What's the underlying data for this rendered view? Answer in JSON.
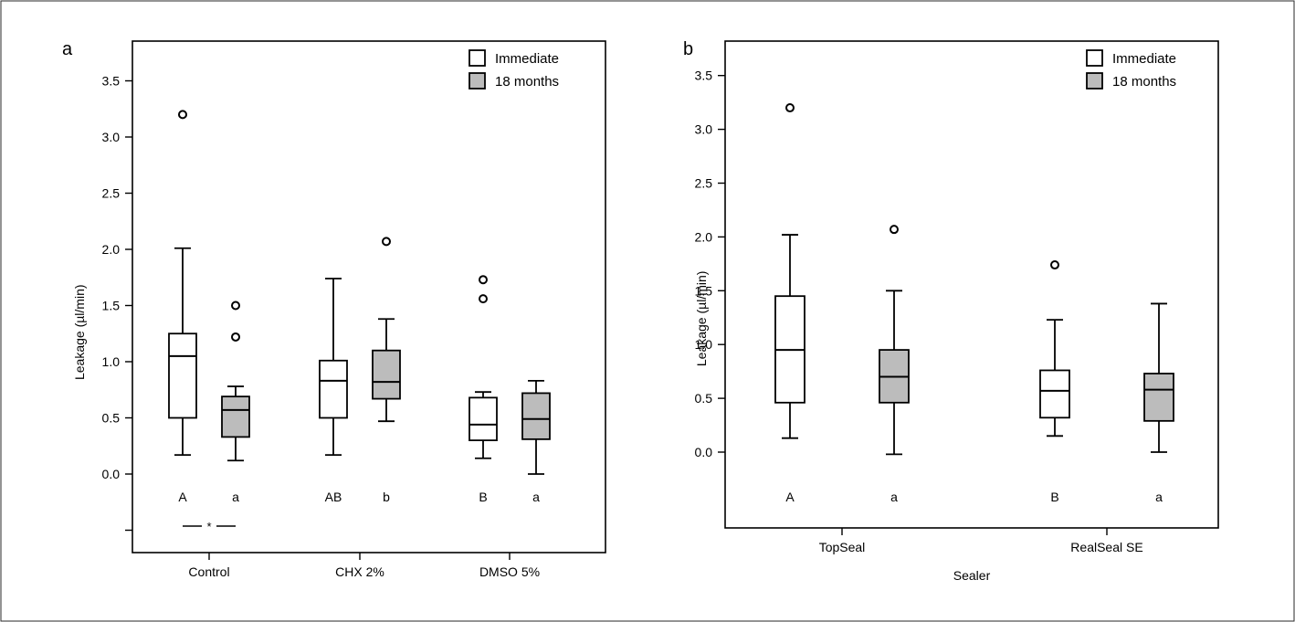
{
  "chart_data": [
    {
      "type": "box",
      "panel_label": "a",
      "ylabel": "Leakage (µl/min)",
      "xlabel": "",
      "ylim": [
        -0.5,
        3.7
      ],
      "yticks": [
        "0.0",
        "0.5",
        "1.0",
        "1.5",
        "2.0",
        "2.5",
        "3.0",
        "3.5"
      ],
      "legend": {
        "placement": "top-right",
        "entries": [
          "Immediate",
          "18 months"
        ]
      },
      "series_colors": {
        "Immediate": "#ffffff",
        "18 months": "#bcbcbc"
      },
      "categories": [
        "Control",
        "CHX 2%",
        "DMSO 5%"
      ],
      "boxes": [
        {
          "category": "Control",
          "series": "Immediate",
          "whisker_low": 0.17,
          "q1": 0.5,
          "median": 1.05,
          "q3": 1.25,
          "whisker_high": 2.01,
          "outliers": [
            3.2
          ],
          "letter": "A"
        },
        {
          "category": "Control",
          "series": "18 months",
          "whisker_low": 0.12,
          "q1": 0.33,
          "median": 0.57,
          "q3": 0.69,
          "whisker_high": 0.78,
          "outliers": [
            1.5,
            1.22
          ],
          "letter": "a"
        },
        {
          "category": "CHX 2%",
          "series": "Immediate",
          "whisker_low": 0.17,
          "q1": 0.5,
          "median": 0.83,
          "q3": 1.01,
          "whisker_high": 1.74,
          "outliers": [],
          "letter": "AB"
        },
        {
          "category": "CHX 2%",
          "series": "18 months",
          "whisker_low": 0.47,
          "q1": 0.67,
          "median": 0.82,
          "q3": 1.1,
          "whisker_high": 1.38,
          "outliers": [
            2.07
          ],
          "letter": "b"
        },
        {
          "category": "DMSO 5%",
          "series": "Immediate",
          "whisker_low": 0.14,
          "q1": 0.3,
          "median": 0.44,
          "q3": 0.68,
          "whisker_high": 0.73,
          "outliers": [
            1.73,
            1.56
          ],
          "letter": "B"
        },
        {
          "category": "DMSO 5%",
          "series": "18 months",
          "whisker_low": 0.0,
          "q1": 0.31,
          "median": 0.49,
          "q3": 0.72,
          "whisker_high": 0.83,
          "outliers": [],
          "letter": "a"
        }
      ],
      "annotations": [
        {
          "text": "*",
          "between": [
            "Control Immediate",
            "Control 18 months"
          ]
        }
      ]
    },
    {
      "type": "box",
      "panel_label": "b",
      "ylabel": "Leakage (µl/min)",
      "xlabel": "Sealer",
      "ylim": [
        -0.73,
        3.7
      ],
      "yticks": [
        "0.0",
        "0.5",
        "1.0",
        "1.5",
        "2.0",
        "2.5",
        "3.0",
        "3.5"
      ],
      "legend": {
        "placement": "top-right",
        "entries": [
          "Immediate",
          "18 months"
        ]
      },
      "series_colors": {
        "Immediate": "#ffffff",
        "18 months": "#bcbcbc"
      },
      "categories": [
        "TopSeal",
        "RealSeal SE"
      ],
      "boxes": [
        {
          "category": "TopSeal",
          "series": "Immediate",
          "whisker_low": 0.13,
          "q1": 0.46,
          "median": 0.95,
          "q3": 1.45,
          "whisker_high": 2.02,
          "outliers": [
            3.2
          ],
          "letter": "A"
        },
        {
          "category": "TopSeal",
          "series": "18 months",
          "whisker_low": -0.02,
          "q1": 0.46,
          "median": 0.7,
          "q3": 0.95,
          "whisker_high": 1.5,
          "outliers": [
            2.07
          ],
          "letter": "a"
        },
        {
          "category": "RealSeal SE",
          "series": "Immediate",
          "whisker_low": 0.15,
          "q1": 0.32,
          "median": 0.57,
          "q3": 0.76,
          "whisker_high": 1.23,
          "outliers": [
            1.74
          ],
          "letter": "B"
        },
        {
          "category": "RealSeal SE",
          "series": "18 months",
          "whisker_low": 0.0,
          "q1": 0.29,
          "median": 0.58,
          "q3": 0.73,
          "whisker_high": 1.38,
          "outliers": [],
          "letter": "a"
        }
      ],
      "annotations": []
    }
  ]
}
